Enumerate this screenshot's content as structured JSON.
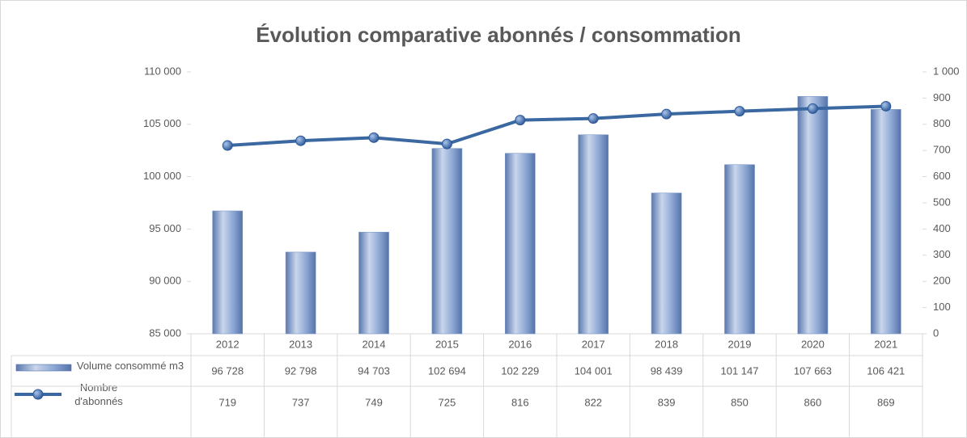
{
  "chart_data": {
    "type": "bar-line",
    "title": "Évolution comparative abonnés / consommation",
    "categories": [
      "2012",
      "2013",
      "2014",
      "2015",
      "2016",
      "2017",
      "2018",
      "2019",
      "2020",
      "2021"
    ],
    "series": [
      {
        "name": "Volume consommé m3",
        "type": "bar",
        "color": "#7b98c9",
        "values": [
          96728,
          92798,
          94703,
          102694,
          102229,
          104001,
          98439,
          101147,
          107663,
          106421
        ],
        "value_labels": [
          "96 728",
          "92 798",
          "94 703",
          "102 694",
          "102 229",
          "104 001",
          "98 439",
          "101 147",
          "107 663",
          "106 421"
        ]
      },
      {
        "name": "Nombre d'abonnés",
        "type": "line",
        "color": "#3b68a0",
        "axis": "y2",
        "values": [
          719,
          737,
          749,
          725,
          816,
          822,
          839,
          850,
          860,
          869
        ]
      }
    ],
    "ylim": [
      85000,
      110000
    ],
    "yticks": [
      {
        "value": 85000,
        "label": "85 000"
      },
      {
        "value": 90000,
        "label": "90 000"
      },
      {
        "value": 95000,
        "label": "95 000"
      },
      {
        "value": 100000,
        "label": "100 000"
      },
      {
        "value": 105000,
        "label": "105 000"
      },
      {
        "value": 110000,
        "label": "110 000"
      }
    ],
    "y2lim": [
      0,
      1000
    ],
    "y2ticks": [
      0,
      100,
      200,
      300,
      400,
      500,
      600,
      700,
      800,
      900,
      {
        "value": 1000,
        "label": "1 000"
      }
    ]
  }
}
